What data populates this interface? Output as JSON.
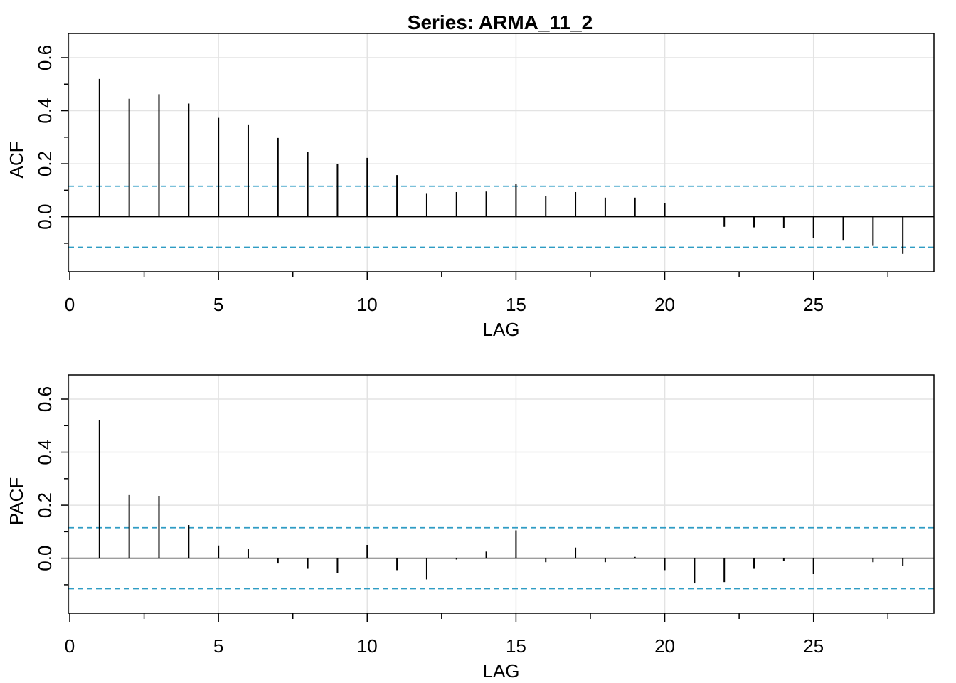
{
  "title": "Series:  ARMA_11_2",
  "chart_data": [
    {
      "type": "bar",
      "ylabel": "ACF",
      "xlabel": "LAG",
      "xlim": [
        0,
        29
      ],
      "ylim": [
        -0.17,
        0.6
      ],
      "x_ticks": [
        0,
        5,
        10,
        15,
        20,
        25
      ],
      "y_ticks": [
        0.0,
        0.2,
        0.4,
        0.6
      ],
      "y_tick_labels": [
        "0.0",
        "0.2",
        "0.4",
        "0.6"
      ],
      "grid": true,
      "ci": 0.115,
      "lags": [
        1,
        2,
        3,
        4,
        5,
        6,
        7,
        8,
        9,
        10,
        11,
        12,
        13,
        14,
        15,
        16,
        17,
        18,
        19,
        20,
        21,
        22,
        23,
        24,
        25,
        26,
        27,
        28
      ],
      "values": [
        0.52,
        0.445,
        0.462,
        0.427,
        0.373,
        0.348,
        0.297,
        0.245,
        0.2,
        0.222,
        0.157,
        0.089,
        0.093,
        0.095,
        0.125,
        0.077,
        0.093,
        0.072,
        0.072,
        0.05,
        0.003,
        -0.038,
        -0.04,
        -0.042,
        -0.08,
        -0.09,
        -0.11,
        -0.14
      ]
    },
    {
      "type": "bar",
      "ylabel": "PACF",
      "xlabel": "LAG",
      "xlim": [
        0,
        29
      ],
      "ylim": [
        -0.17,
        0.6
      ],
      "x_ticks": [
        0,
        5,
        10,
        15,
        20,
        25
      ],
      "y_ticks": [
        0.0,
        0.2,
        0.4,
        0.6
      ],
      "y_tick_labels": [
        "0.0",
        "0.2",
        "0.4",
        "0.6"
      ],
      "grid": true,
      "ci": 0.115,
      "lags": [
        1,
        2,
        3,
        4,
        5,
        6,
        7,
        8,
        9,
        10,
        11,
        12,
        13,
        14,
        15,
        16,
        17,
        18,
        19,
        20,
        21,
        22,
        23,
        24,
        25,
        26,
        27,
        28
      ],
      "values": [
        0.52,
        0.238,
        0.235,
        0.125,
        0.048,
        0.035,
        -0.02,
        -0.04,
        -0.055,
        0.05,
        -0.045,
        -0.08,
        -0.005,
        0.025,
        0.105,
        -0.015,
        0.04,
        -0.015,
        0.005,
        -0.045,
        -0.095,
        -0.09,
        -0.04,
        -0.01,
        -0.06,
        0.0,
        -0.015,
        -0.03
      ]
    }
  ]
}
